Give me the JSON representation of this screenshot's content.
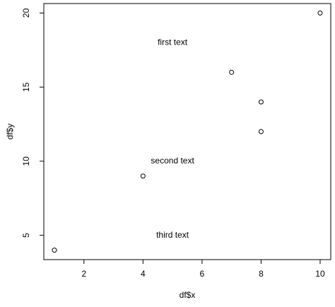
{
  "chart_data": {
    "type": "scatter",
    "title": "",
    "xlabel": "df$x",
    "ylabel": "df$y",
    "xlim": [
      0.64,
      10.36
    ],
    "ylim": [
      3.36,
      20.64
    ],
    "x_ticks": [
      2,
      4,
      6,
      8,
      10
    ],
    "y_ticks": [
      5,
      10,
      15,
      20
    ],
    "x_tick_labels": [
      "2",
      "4",
      "6",
      "8",
      "10"
    ],
    "y_tick_labels": [
      "5",
      "10",
      "15",
      "20"
    ],
    "grid": false,
    "legend": "none",
    "points": [
      {
        "x": 1,
        "y": 4
      },
      {
        "x": 4,
        "y": 9
      },
      {
        "x": 7,
        "y": 16
      },
      {
        "x": 8,
        "y": 14
      },
      {
        "x": 8,
        "y": 12
      },
      {
        "x": 10,
        "y": 20
      }
    ],
    "annotations": [
      {
        "text": "first text",
        "x": 5,
        "y": 18
      },
      {
        "text": "second text",
        "x": 5,
        "y": 10
      },
      {
        "text": "third text",
        "x": 5,
        "y": 5
      }
    ],
    "colors": {
      "background": "#ffffff",
      "axis": "#000000",
      "points": "#000000"
    }
  }
}
